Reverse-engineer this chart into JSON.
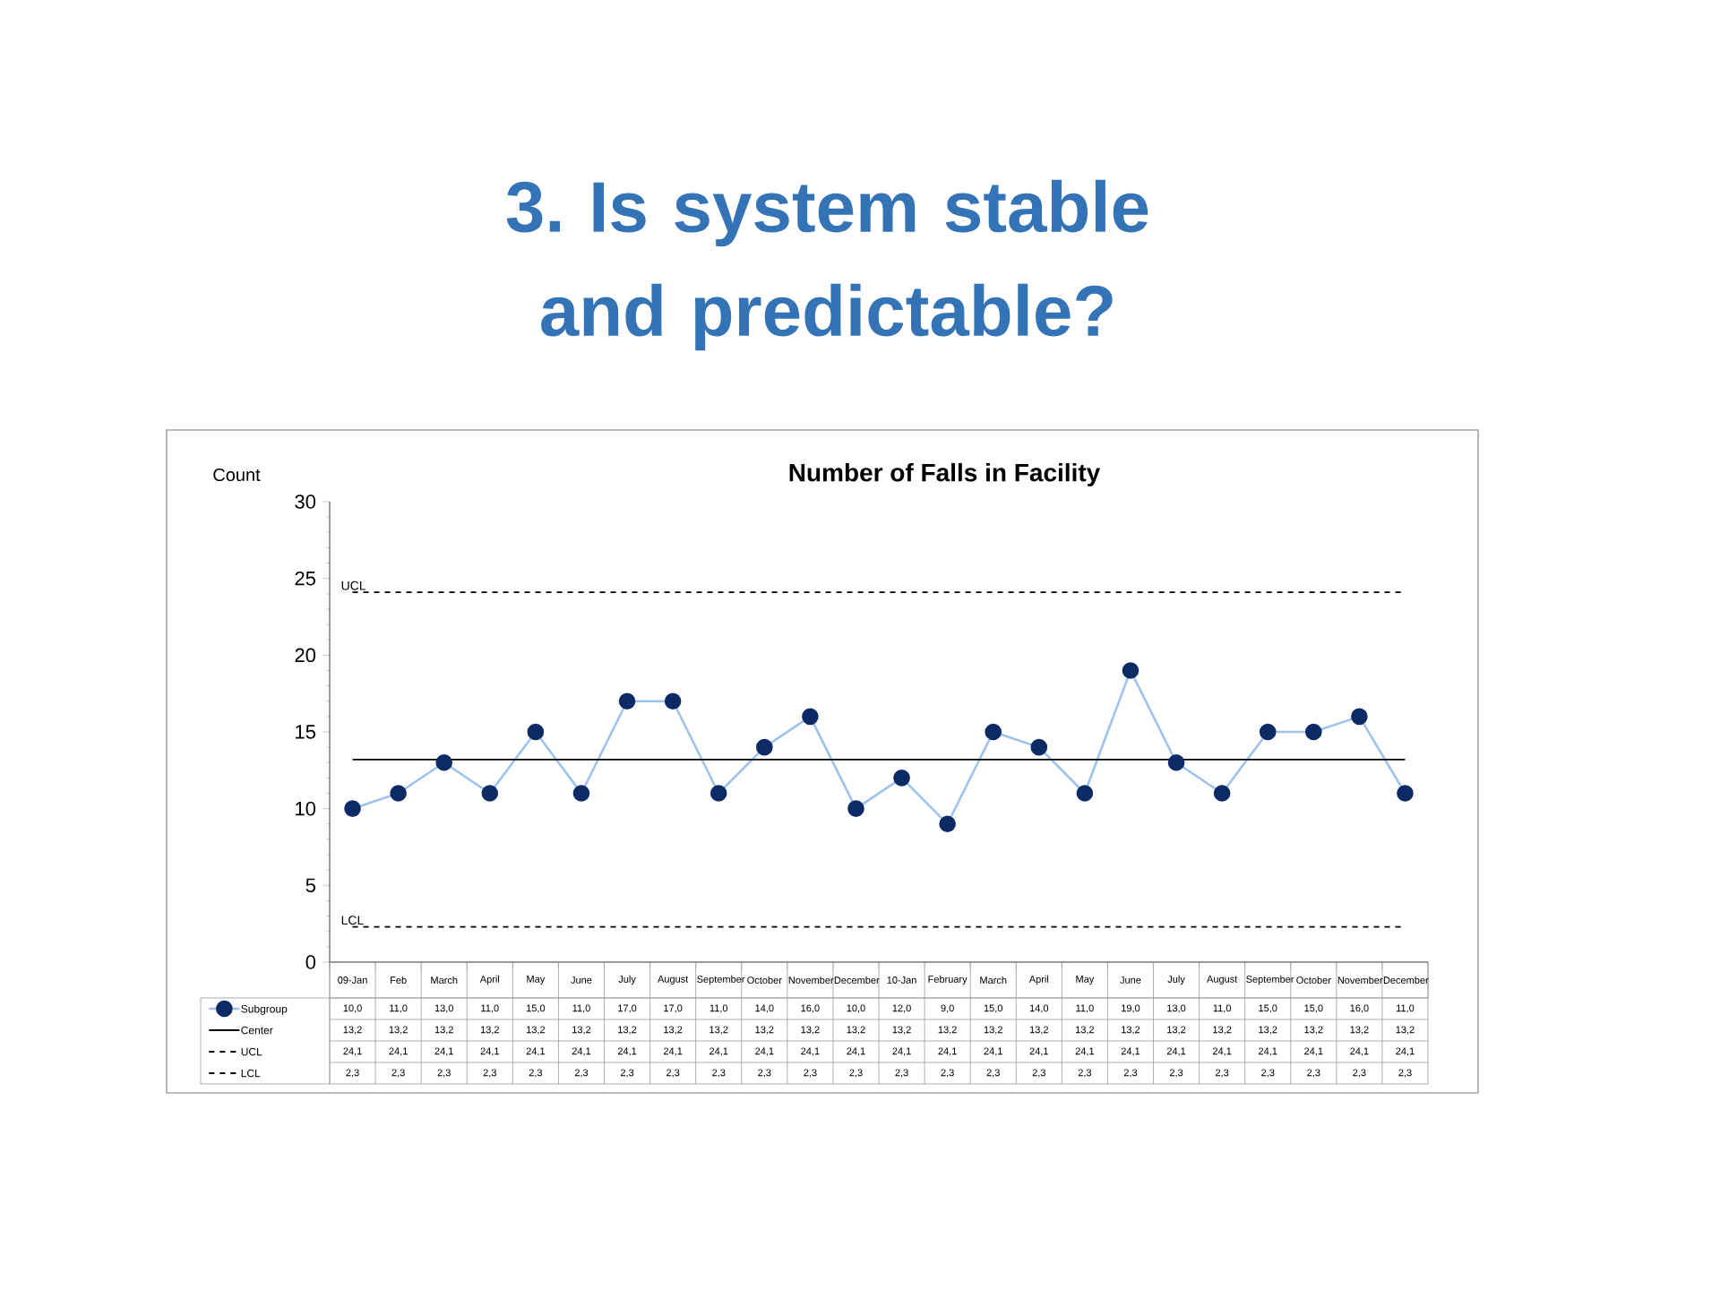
{
  "chart_data": {
    "type": "line",
    "title": "3. Is system stable and predictable?",
    "subtitle": "Number of Falls in Facility",
    "ylabel": "Count",
    "categories": [
      "09-Jan",
      "Feb",
      "March",
      "April",
      "May",
      "June",
      "July",
      "August",
      "September",
      "October",
      "November",
      "December",
      "10-Jan",
      "February",
      "March",
      "April",
      "May",
      "June",
      "July",
      "August",
      "September",
      "October",
      "November",
      "December"
    ],
    "series": [
      {
        "name": "Subgroup",
        "color": "#9dc3ec",
        "marker": "circle",
        "line_style": "solid",
        "colors": [
          "#0b2a66",
          "#0b2a66",
          "#0b2a66",
          "#0b2a66",
          "#0b2a66",
          "#0b2a66",
          "#0b2a66",
          "#0b2a66",
          "#0b2a66",
          "#0b2a66",
          "#0b2a66",
          "#0b2a66",
          "#0b2a66",
          "#0b2a66",
          "#0b2a66",
          "#0b2a66",
          "#0b2a66",
          "#0b2a66",
          "#0b2a66",
          "#0b2a66",
          "#0b2a66",
          "#0b2a66",
          "#0b2a66",
          "#0b2a66"
        ],
        "values": [
          10,
          11,
          13,
          11,
          15,
          11,
          17,
          17,
          11,
          14,
          16,
          10,
          12,
          9,
          15,
          14,
          11,
          19,
          13,
          11,
          15,
          15,
          16,
          11
        ],
        "value_labels": [
          "10,0",
          "11,0",
          "13,0",
          "11,0",
          "15,0",
          "11,0",
          "17,0",
          "17,0",
          "11,0",
          "14,0",
          "16,0",
          "10,0",
          "12,0",
          "9,0",
          "15,0",
          "14,0",
          "11,0",
          "19,0",
          "13,0",
          "11,0",
          "15,0",
          "15,0",
          "16,0",
          "11,0"
        ]
      },
      {
        "name": "Center",
        "color": "#000000",
        "marker": "none",
        "line_style": "solid",
        "values": [
          13.2,
          13.2,
          13.2,
          13.2,
          13.2,
          13.2,
          13.2,
          13.2,
          13.2,
          13.2,
          13.2,
          13.2,
          13.2,
          13.2,
          13.2,
          13.2,
          13.2,
          13.2,
          13.2,
          13.2,
          13.2,
          13.2,
          13.2,
          13.2
        ],
        "value_labels": [
          "13,2",
          "13,2",
          "13,2",
          "13,2",
          "13,2",
          "13,2",
          "13,2",
          "13,2",
          "13,2",
          "13,2",
          "13,2",
          "13,2",
          "13,2",
          "13,2",
          "13,2",
          "13,2",
          "13,2",
          "13,2",
          "13,2",
          "13,2",
          "13,2",
          "13,2",
          "13,2",
          "13,2"
        ]
      },
      {
        "name": "UCL",
        "color": "#000000",
        "marker": "none",
        "line_style": "dashed",
        "values": [
          24.1,
          24.1,
          24.1,
          24.1,
          24.1,
          24.1,
          24.1,
          24.1,
          24.1,
          24.1,
          24.1,
          24.1,
          24.1,
          24.1,
          24.1,
          24.1,
          24.1,
          24.1,
          24.1,
          24.1,
          24.1,
          24.1,
          24.1,
          24.1
        ],
        "value_labels": [
          "24,1",
          "24,1",
          "24,1",
          "24,1",
          "24,1",
          "24,1",
          "24,1",
          "24,1",
          "24,1",
          "24,1",
          "24,1",
          "24,1",
          "24,1",
          "24,1",
          "24,1",
          "24,1",
          "24,1",
          "24,1",
          "24,1",
          "24,1",
          "24,1",
          "24,1",
          "24,1",
          "24,1"
        ]
      },
      {
        "name": "LCL",
        "color": "#000000",
        "marker": "none",
        "line_style": "dashed",
        "values": [
          2.3,
          2.3,
          2.3,
          2.3,
          2.3,
          2.3,
          2.3,
          2.3,
          2.3,
          2.3,
          2.3,
          2.3,
          2.3,
          2.3,
          2.3,
          2.3,
          2.3,
          2.3,
          2.3,
          2.3,
          2.3,
          2.3,
          2.3,
          2.3
        ],
        "value_labels": [
          "2,3",
          "2,3",
          "2,3",
          "2,3",
          "2,3",
          "2,3",
          "2,3",
          "2,3",
          "2,3",
          "2,3",
          "2,3",
          "2,3",
          "2,3",
          "2,3",
          "2,3",
          "2,3",
          "2,3",
          "2,3",
          "2,3",
          "2,3",
          "2,3",
          "2,3",
          "2,3",
          "2,3"
        ]
      }
    ],
    "ylim": [
      0,
      30
    ],
    "yticks": [
      0,
      5,
      10,
      15,
      20,
      25,
      30
    ],
    "grid": false,
    "legend": "bottom left"
  }
}
